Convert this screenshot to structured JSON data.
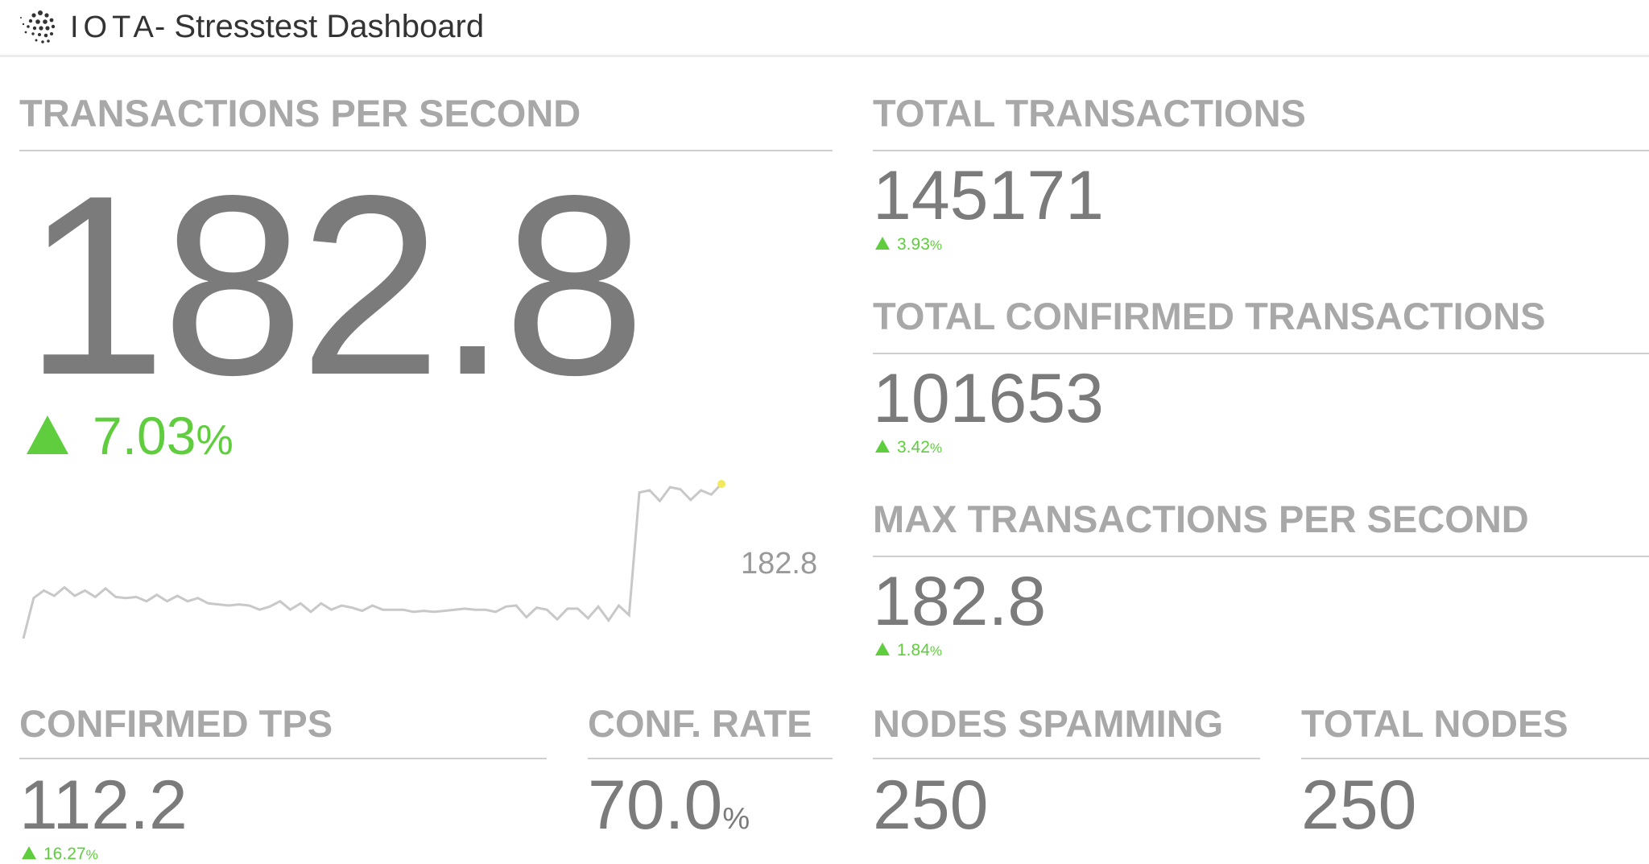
{
  "header": {
    "logo": "IOTA",
    "title": "- Stresstest Dashboard"
  },
  "tps": {
    "label": "TRANSACTIONS PER SECOND",
    "value": "182.8",
    "change": {
      "value": "7.03",
      "unit": "%"
    },
    "sparkline": {
      "type": "line",
      "color": "#c8c8c8",
      "end_color": "#f2ea5a",
      "last_label": "182.8",
      "values": [
        66.8,
        97.2,
        102.8,
        98.8,
        105.2,
        98.8,
        102.8,
        98,
        104.4,
        98,
        97.2,
        98,
        94.8,
        99.6,
        94.8,
        98.8,
        94.8,
        97.2,
        93.2,
        92.4,
        91.6,
        92.4,
        91.6,
        88.4,
        90.8,
        94.8,
        88.4,
        93.2,
        86.8,
        93.2,
        88.4,
        91.6,
        90,
        87.6,
        91.6,
        88.4,
        88.4,
        88.4,
        86.8,
        87.6,
        86.8,
        87.6,
        88.4,
        89.2,
        88.4,
        88.4,
        86.8,
        90.8,
        91.6,
        82.8,
        90,
        88.4,
        81.2,
        89.2,
        89.2,
        82,
        90.8,
        80.4,
        91.6,
        84.4,
        176.4,
        178,
        170,
        180.4,
        178.8,
        170.8,
        178,
        174.8,
        182.8
      ]
    }
  },
  "total_transactions": {
    "label": "TOTAL TRANSACTIONS",
    "value": "145171",
    "change": {
      "value": "3.93",
      "unit": "%"
    }
  },
  "total_confirmed": {
    "label": "TOTAL CONFIRMED TRANSACTIONS",
    "value": "101653",
    "change": {
      "value": "3.42",
      "unit": "%"
    }
  },
  "max_tps": {
    "label": "MAX TRANSACTIONS PER SECOND",
    "value": "182.8",
    "change": {
      "value": "1.84",
      "unit": "%"
    }
  },
  "confirmed_tps": {
    "label": "CONFIRMED TPS",
    "value": "112.2",
    "change": {
      "value": "16.27",
      "unit": "%"
    }
  },
  "conf_rate": {
    "label": "CONF. RATE",
    "value": "70.0",
    "unit": "%"
  },
  "nodes_spamming": {
    "label": "NODES SPAMMING",
    "value": "250"
  },
  "total_nodes": {
    "label": "TOTAL NODES",
    "value": "250"
  }
}
